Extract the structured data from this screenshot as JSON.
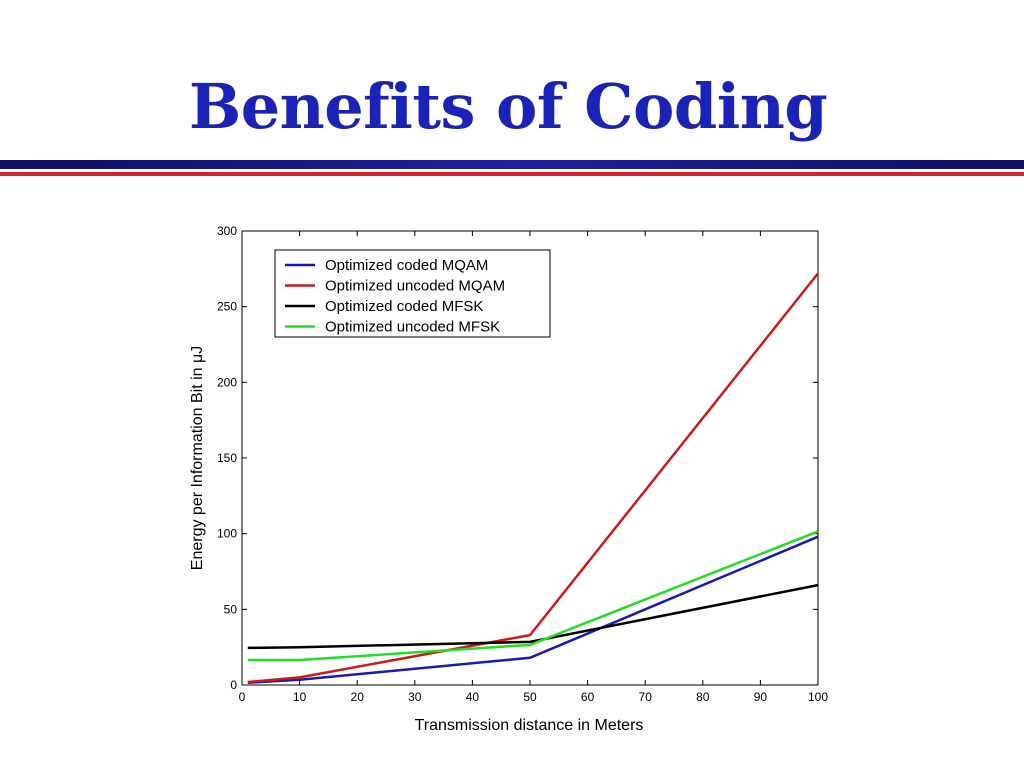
{
  "slide": {
    "title": "Benefits of Coding"
  },
  "colors": {
    "title": "#1a22b8",
    "rule_navy": "#15156e",
    "rule_red": "#d4232f"
  },
  "chart_data": {
    "type": "line",
    "title": "",
    "xlabel": "Transmission distance in Meters",
    "ylabel": "Energy per Information Bit in μJ",
    "xlim": [
      0,
      100
    ],
    "ylim": [
      0,
      300
    ],
    "xticks": [
      0,
      10,
      20,
      30,
      40,
      50,
      60,
      70,
      80,
      90,
      100
    ],
    "yticks": [
      0,
      50,
      100,
      150,
      200,
      250,
      300
    ],
    "grid": false,
    "legend_position": "top-left",
    "series": [
      {
        "name": "Optimized coded MQAM",
        "color": "#1a1ab0",
        "x": [
          1,
          10,
          50,
          100
        ],
        "y": [
          1.5,
          3.5,
          18,
          98
        ]
      },
      {
        "name": "Optimized uncoded MQAM",
        "color": "#cc1a1a",
        "x": [
          1,
          10,
          50,
          100
        ],
        "y": [
          2,
          5,
          33,
          272
        ]
      },
      {
        "name": "Optimized coded MFSK",
        "color": "#000000",
        "x": [
          1,
          10,
          50,
          100
        ],
        "y": [
          24.5,
          25,
          28.5,
          66
        ]
      },
      {
        "name": "Optimized uncoded MFSK",
        "color": "#22dd22",
        "x": [
          1,
          10,
          50,
          100
        ],
        "y": [
          16.5,
          16.5,
          26.5,
          101.5
        ]
      }
    ]
  }
}
